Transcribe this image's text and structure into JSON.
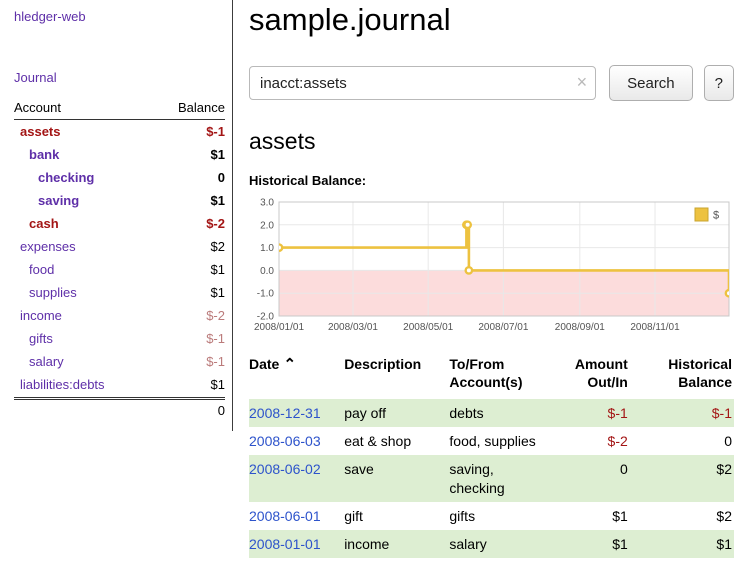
{
  "colors": {
    "purple": "#5e2fa8",
    "link_blue": "#2d53cb",
    "negative_strong": "#a31515",
    "negative_muted": "#bb7b7b",
    "row_shade": "#ddeed2"
  },
  "app": {
    "brand": "hledger-web",
    "nav_journal": "Journal"
  },
  "sidebar": {
    "header": {
      "account": "Account",
      "balance": "Balance"
    },
    "accounts": [
      {
        "name": "assets",
        "depth": 0,
        "balance": "$-1",
        "active": true,
        "name_negative": true,
        "balance_negative": "strong"
      },
      {
        "name": "bank",
        "depth": 1,
        "balance": "$1",
        "active": true,
        "name_negative": false,
        "balance_negative": "none"
      },
      {
        "name": "checking",
        "depth": 2,
        "balance": "0",
        "active": true,
        "name_negative": false,
        "balance_negative": "none"
      },
      {
        "name": "saving",
        "depth": 2,
        "balance": "$1",
        "active": true,
        "name_negative": false,
        "balance_negative": "none"
      },
      {
        "name": "cash",
        "depth": 1,
        "balance": "$-2",
        "active": true,
        "name_negative": true,
        "balance_negative": "strong"
      },
      {
        "name": "expenses",
        "depth": 0,
        "balance": "$2",
        "active": false,
        "name_negative": false,
        "balance_negative": "none"
      },
      {
        "name": "food",
        "depth": 1,
        "balance": "$1",
        "active": false,
        "name_negative": false,
        "balance_negative": "none"
      },
      {
        "name": "supplies",
        "depth": 1,
        "balance": "$1",
        "active": false,
        "name_negative": false,
        "balance_negative": "none"
      },
      {
        "name": "income",
        "depth": 0,
        "balance": "$-2",
        "active": false,
        "name_negative": false,
        "balance_negative": "muted"
      },
      {
        "name": "gifts",
        "depth": 1,
        "balance": "$-1",
        "active": false,
        "name_negative": false,
        "balance_negative": "muted"
      },
      {
        "name": "salary",
        "depth": 1,
        "balance": "$-1",
        "active": false,
        "name_negative": false,
        "balance_negative": "muted"
      },
      {
        "name": "liabilities:debts",
        "depth": 0,
        "balance": "$1",
        "active": false,
        "name_negative": false,
        "balance_negative": "none"
      }
    ],
    "total": "0"
  },
  "main": {
    "title": "sample.journal",
    "search": {
      "value": "inacct:assets",
      "clear_icon": "×",
      "button_label": "Search",
      "help_label": "?"
    },
    "account_heading": "assets",
    "chart_label": "Historical Balance:"
  },
  "chart_data": {
    "type": "line",
    "step": true,
    "title": "Historical Balance",
    "xlabel": "",
    "ylabel": "",
    "xlim": [
      "2008-01-01",
      "2008-12-31"
    ],
    "ylim": [
      -2,
      3
    ],
    "x_ticks": [
      "2008/01/01",
      "2008/03/01",
      "2008/05/01",
      "2008/07/01",
      "2008/09/01",
      "2008/11/01"
    ],
    "y_ticks": [
      3.0,
      2.0,
      1.0,
      0.0,
      -1.0,
      -2.0
    ],
    "grid": true,
    "legend_position": "top-right",
    "series": [
      {
        "name": "$",
        "color": "#edc240",
        "points": [
          [
            "2008-01-01",
            1
          ],
          [
            "2008-06-01",
            2
          ],
          [
            "2008-06-02",
            2
          ],
          [
            "2008-06-03",
            0
          ],
          [
            "2008-12-31",
            -1
          ]
        ]
      }
    ],
    "colors": {
      "negative_fill": "#fcdcdc",
      "grid": "#e8e8e8",
      "border": "#c8c8c8",
      "text": "#545454",
      "legend_border": "#c9a42f"
    }
  },
  "register": {
    "sort_icon": "⌃",
    "headers": [
      {
        "lines": [
          "Date"
        ],
        "align": "left",
        "sort": "asc"
      },
      {
        "lines": [
          "Description"
        ],
        "align": "left"
      },
      {
        "lines": [
          "To/From",
          "Account(s)"
        ],
        "align": "left"
      },
      {
        "lines": [
          "Amount",
          "Out/In"
        ],
        "align": "right"
      },
      {
        "lines": [
          "Historical",
          "Balance"
        ],
        "align": "right"
      }
    ],
    "rows": [
      {
        "date": "2008-12-31",
        "description": "pay off",
        "accounts": "debts",
        "amount": "$-1",
        "amount_negative": true,
        "balance": "$-1",
        "balance_negative": true,
        "shaded": true
      },
      {
        "date": "2008-06-03",
        "description": "eat & shop",
        "accounts": "food, supplies",
        "amount": "$-2",
        "amount_negative": true,
        "balance": "0",
        "balance_negative": false,
        "shaded": false
      },
      {
        "date": "2008-06-02",
        "description": "save",
        "accounts": "saving, checking",
        "amount": "0",
        "amount_negative": false,
        "balance": "$2",
        "balance_negative": false,
        "shaded": true
      },
      {
        "date": "2008-06-01",
        "description": "gift",
        "accounts": "gifts",
        "amount": "$1",
        "amount_negative": false,
        "balance": "$2",
        "balance_negative": false,
        "shaded": false
      },
      {
        "date": "2008-01-01",
        "description": "income",
        "accounts": "salary",
        "amount": "$1",
        "amount_negative": false,
        "balance": "$1",
        "balance_negative": false,
        "shaded": true
      }
    ]
  }
}
